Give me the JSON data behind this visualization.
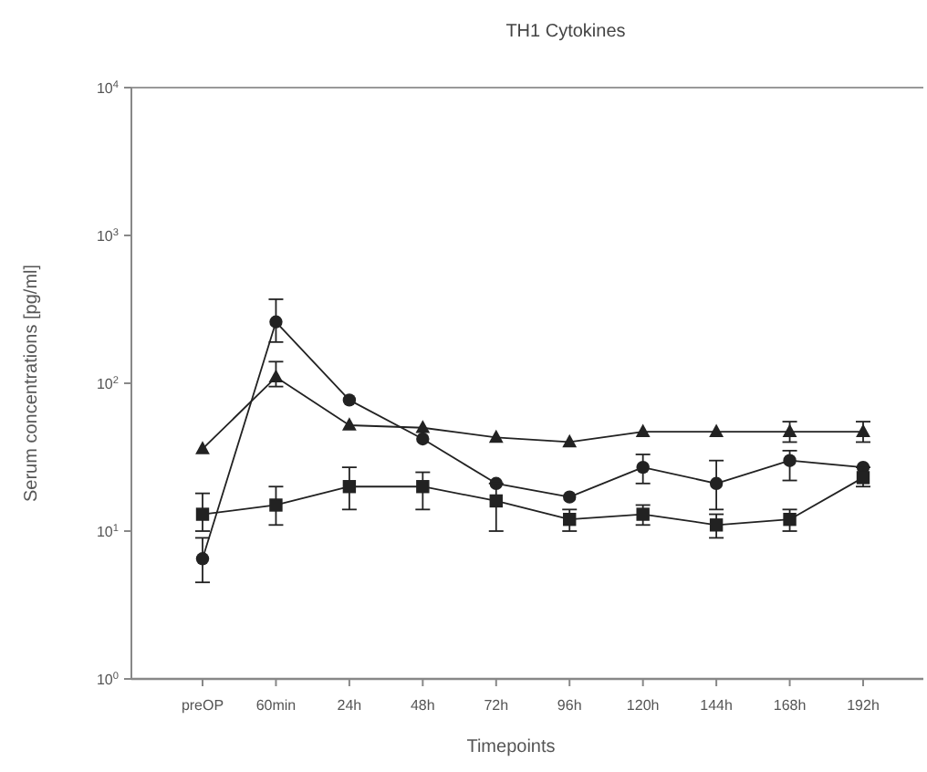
{
  "chart_data": {
    "type": "line",
    "title": "TH1 Cytokines",
    "xlabel": "Timepoints",
    "ylabel": "Serum concentrations [pg/ml]",
    "categories": [
      "preOP",
      "60min",
      "24h",
      "48h",
      "72h",
      "96h",
      "120h",
      "144h",
      "168h",
      "192h"
    ],
    "log": "y",
    "ylim": [
      1,
      10000
    ],
    "yticks": [
      {
        "value": 1,
        "label": "10$^{0}$"
      },
      {
        "value": 10,
        "label": "10$^{1}$"
      },
      {
        "value": 100,
        "label": "10$^{2}$"
      },
      {
        "value": 1000,
        "label": "10$^{3}$"
      },
      {
        "value": 10000,
        "label": "10$^{4}$"
      }
    ],
    "grid": false,
    "series": [
      {
        "color": "#222222",
        "marker": "triangle",
        "values": [
          36,
          110,
          52,
          50,
          43,
          40,
          47,
          47,
          47,
          47
        ],
        "errors": [
          null,
          [
            95,
            140
          ],
          null,
          null,
          null,
          null,
          null,
          null,
          [
            40,
            55
          ],
          [
            40,
            55
          ]
        ]
      },
      {
        "color": "#222222",
        "marker": "circle",
        "values": [
          6.5,
          260,
          77,
          42,
          21,
          17,
          27,
          21,
          30,
          27
        ],
        "errors": [
          [
            4.5,
            9
          ],
          [
            190,
            370
          ],
          null,
          null,
          null,
          null,
          [
            21,
            33
          ],
          [
            14,
            30
          ],
          [
            22,
            35
          ],
          null
        ]
      },
      {
        "color": "#222222",
        "marker": "square",
        "values": [
          13,
          15,
          20,
          20,
          16,
          12,
          13,
          11,
          12,
          23
        ],
        "errors": [
          [
            10,
            18
          ],
          [
            11,
            20
          ],
          [
            14,
            27
          ],
          [
            14,
            25
          ],
          [
            10,
            21
          ],
          [
            10,
            14
          ],
          [
            11,
            15
          ],
          [
            9,
            13
          ],
          [
            10,
            14
          ],
          [
            20,
            27
          ]
        ]
      }
    ]
  }
}
